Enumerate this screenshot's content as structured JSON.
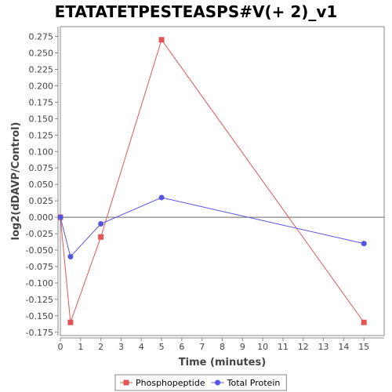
{
  "chart_data": {
    "type": "line",
    "title": "ETATATETPESTEASPS#V(+ 2)_v1",
    "xlabel": "Time (minutes)",
    "ylabel": "log2(dDAVP/Control)",
    "xlim": [
      0,
      16
    ],
    "ylim": [
      -0.18,
      0.29
    ],
    "x_ticks": [
      0,
      1,
      2,
      3,
      4,
      5,
      6,
      7,
      8,
      9,
      10,
      11,
      12,
      13,
      14,
      15
    ],
    "y_ticks": [
      -0.175,
      -0.15,
      -0.125,
      -0.1,
      -0.075,
      -0.05,
      -0.025,
      0.0,
      0.025,
      0.05,
      0.075,
      0.1,
      0.125,
      0.15,
      0.175,
      0.2,
      0.225,
      0.25,
      0.275
    ],
    "y_tick_labels": [
      "-0.175",
      "-0.150",
      "-0.125",
      "-0.100",
      "-0.075",
      "-0.050",
      "-0.025",
      "0.000",
      "0.025",
      "0.050",
      "0.075",
      "0.100",
      "0.125",
      "0.150",
      "0.175",
      "0.200",
      "0.225",
      "0.250",
      "0.275"
    ],
    "grid": false,
    "legend_position": "bottom-center",
    "series": [
      {
        "name": "Phosphopeptide",
        "marker": "square",
        "color": "#e05555",
        "x": [
          0,
          0.5,
          2,
          5,
          15
        ],
        "y": [
          0.0,
          -0.16,
          -0.03,
          0.27,
          -0.16
        ]
      },
      {
        "name": "Total Protein",
        "marker": "circle",
        "color": "#5555e0",
        "x": [
          0,
          0.5,
          2,
          5,
          15
        ],
        "y": [
          0.0,
          -0.06,
          -0.01,
          0.03,
          -0.04
        ]
      }
    ]
  }
}
